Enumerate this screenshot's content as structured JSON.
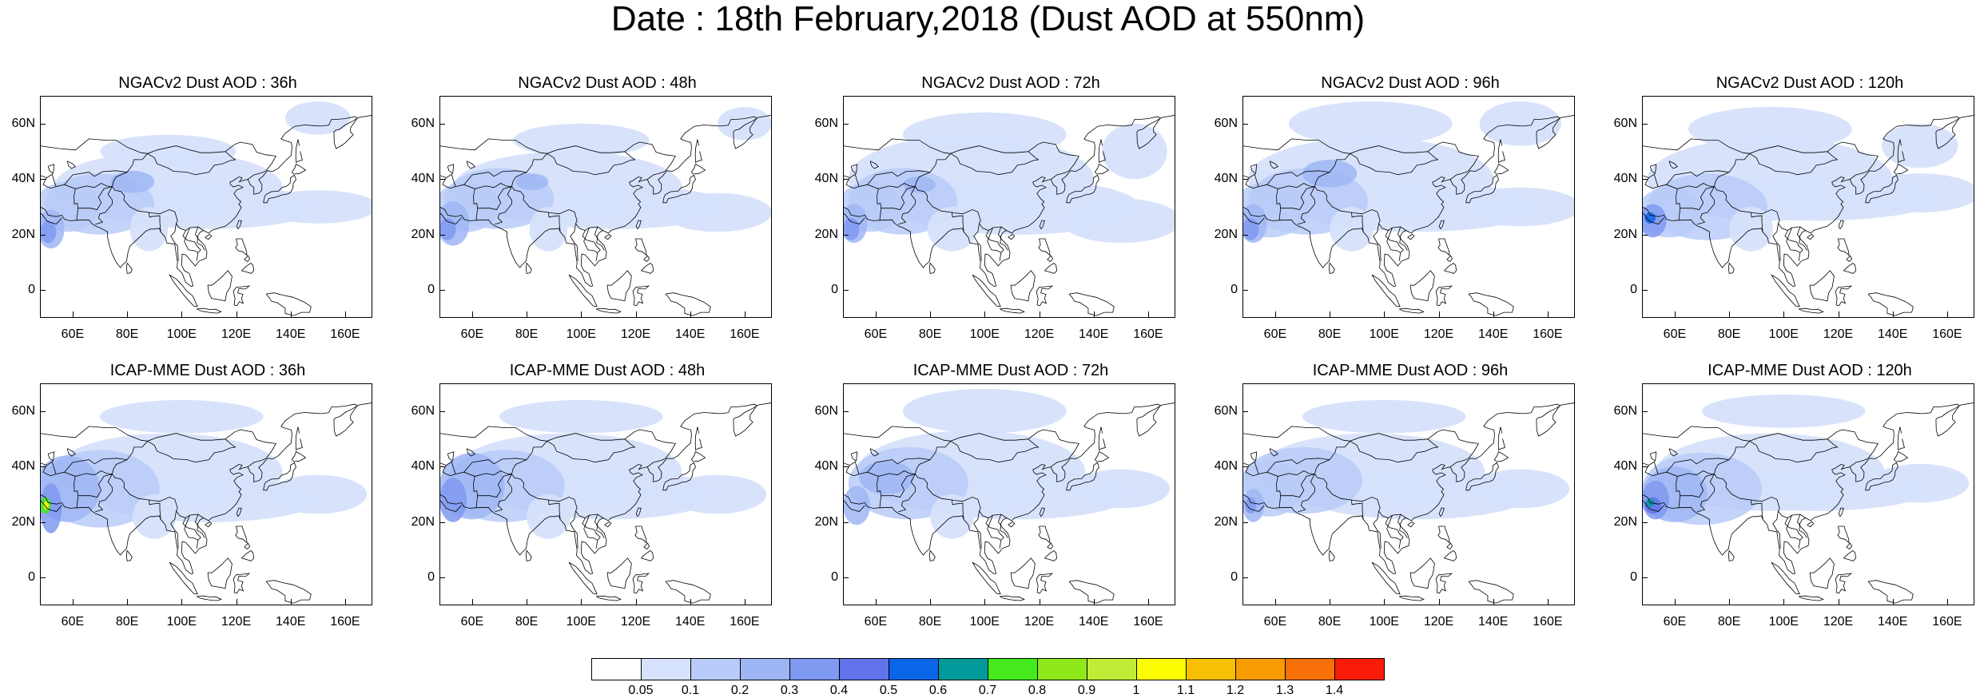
{
  "title": "Date : 18th February,2018 (Dust AOD at 550nm)",
  "x_ticks": [
    "60E",
    "80E",
    "100E",
    "120E",
    "140E",
    "160E"
  ],
  "x_tick_lon": [
    60,
    80,
    100,
    120,
    140,
    160
  ],
  "y_ticks": [
    "60N",
    "40N",
    "20N",
    "0"
  ],
  "y_tick_lat": [
    60,
    40,
    20,
    0
  ],
  "map_extent": {
    "lon": [
      48,
      170
    ],
    "lat": [
      -10,
      70
    ]
  },
  "panels": [
    {
      "title": "NGACv2 Dust AOD : 36h",
      "model": "NGACv2",
      "lead": 36
    },
    {
      "title": "NGACv2 Dust AOD : 48h",
      "model": "NGACv2",
      "lead": 48
    },
    {
      "title": "NGACv2 Dust AOD : 72h",
      "model": "NGACv2",
      "lead": 72
    },
    {
      "title": "NGACv2 Dust AOD : 96h",
      "model": "NGACv2",
      "lead": 96
    },
    {
      "title": "NGACv2 Dust AOD : 120h",
      "model": "NGACv2",
      "lead": 120
    },
    {
      "title": "ICAP-MME Dust AOD : 36h",
      "model": "ICAP-MME",
      "lead": 36
    },
    {
      "title": "ICAP-MME Dust AOD : 48h",
      "model": "ICAP-MME",
      "lead": 48
    },
    {
      "title": "ICAP-MME Dust AOD : 72h",
      "model": "ICAP-MME",
      "lead": 72
    },
    {
      "title": "ICAP-MME Dust AOD : 96h",
      "model": "ICAP-MME",
      "lead": 96
    },
    {
      "title": "ICAP-MME Dust AOD : 120h",
      "model": "ICAP-MME",
      "lead": 120
    }
  ],
  "colorbar": {
    "labels": [
      "0.05",
      "0.1",
      "0.2",
      "0.3",
      "0.4",
      "0.5",
      "0.6",
      "0.7",
      "0.8",
      "0.9",
      "1",
      "1.1",
      "1.2",
      "1.3",
      "1.4"
    ],
    "colors": [
      "#ffffff",
      "#d6e2fb",
      "#b9cbf8",
      "#9fb6f4",
      "#8099f1",
      "#6272ea",
      "#0a66e6",
      "#009a9a",
      "#44ea1e",
      "#8ee81a",
      "#c0ec38",
      "#fcfc02",
      "#f8c002",
      "#f89c02",
      "#f87008",
      "#f81c08"
    ]
  }
}
